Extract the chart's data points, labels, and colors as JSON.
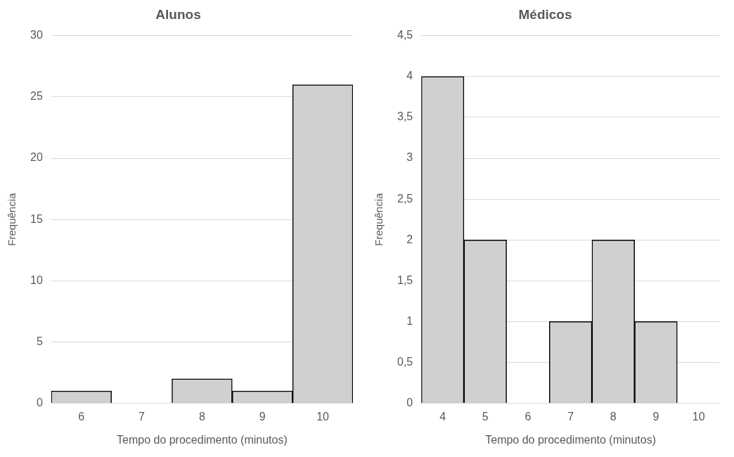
{
  "chart_data": [
    {
      "type": "bar",
      "title": "Alunos",
      "xlabel": "Tempo do procedimento (minutos)",
      "ylabel": "Frequência",
      "categories": [
        "6",
        "7",
        "8",
        "9",
        "10"
      ],
      "values": [
        1,
        0,
        2,
        1,
        26
      ],
      "color": "#d0d0d0",
      "ylim": [
        0,
        30
      ],
      "yticks": [
        0,
        5,
        10,
        15,
        20,
        25,
        30
      ],
      "grid": "y",
      "legend": false
    },
    {
      "type": "bar",
      "title": "Médicos",
      "xlabel": "Tempo do procedimento (minutos)",
      "ylabel": "Frequência",
      "categories": [
        "4",
        "5",
        "6",
        "7",
        "8",
        "9",
        "10"
      ],
      "values": [
        4,
        2,
        0,
        1,
        2,
        1,
        0
      ],
      "color": "#d0d0d0",
      "ylim": [
        0,
        4.5
      ],
      "yticks": [
        0,
        {
          "value": 0.5,
          "label": "0,5"
        },
        1,
        {
          "value": 1.5,
          "label": "1,5"
        },
        2,
        {
          "value": 2.5,
          "label": "2,5"
        },
        3,
        {
          "value": 3.5,
          "label": "3,5"
        },
        4,
        {
          "value": 4.5,
          "label": "4,5"
        }
      ],
      "grid": "y",
      "legend": false
    }
  ]
}
